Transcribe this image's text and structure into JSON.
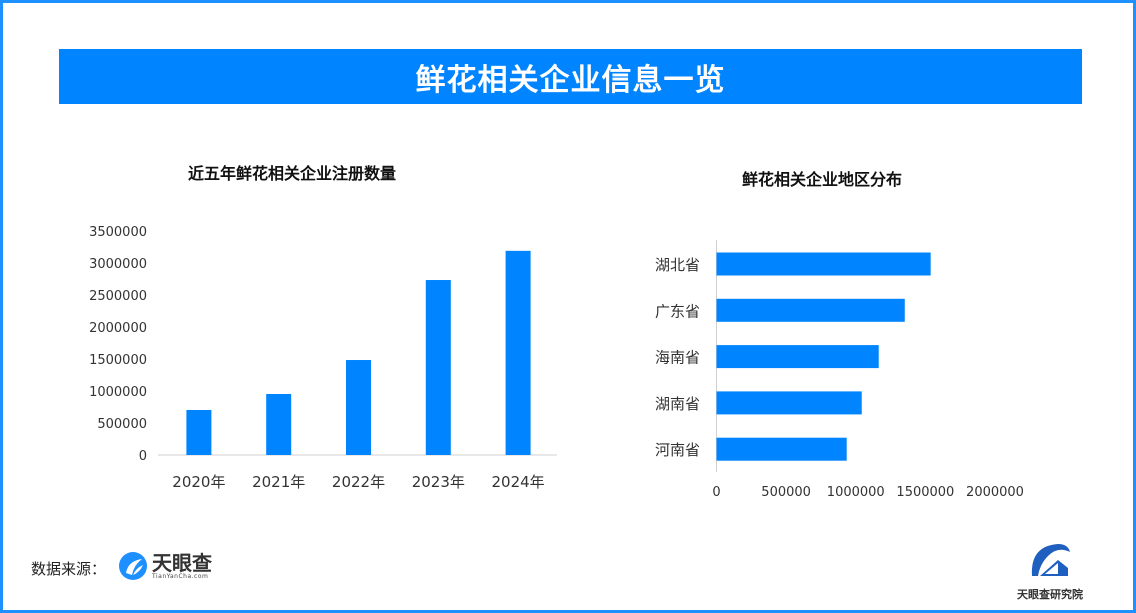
{
  "header": {
    "title": "鲜花相关企业信息一览"
  },
  "chart_data": [
    {
      "type": "bar",
      "title": "近五年鲜花相关企业注册数量",
      "categories": [
        "2020年",
        "2021年",
        "2022年",
        "2023年",
        "2024年"
      ],
      "values": [
        703000,
        953000,
        1484000,
        2734000,
        3190000
      ],
      "ylim": [
        0,
        3500000
      ],
      "yticks": [
        "0",
        "500000",
        "1000000",
        "1500000",
        "2000000",
        "2500000",
        "3000000",
        "3500000"
      ],
      "grid": false,
      "color": "#0084ff"
    },
    {
      "type": "bar",
      "orientation": "horizontal",
      "title": "鲜花相关企业地区分布",
      "categories": [
        "湖北省",
        "广东省",
        "海南省",
        "湖南省",
        "河南省"
      ],
      "values": [
        1538000,
        1352000,
        1165000,
        1043000,
        935000
      ],
      "xlim": [
        0,
        2000000
      ],
      "xticks": [
        "0",
        "500000",
        "1000000",
        "1500000",
        "2000000"
      ],
      "grid": false,
      "color": "#0084ff"
    }
  ],
  "footer": {
    "source_label": "数据来源：",
    "logo_name": "天眼查",
    "logo_url": "TianYanCha.com",
    "institute_name": "天眼查研究院"
  }
}
